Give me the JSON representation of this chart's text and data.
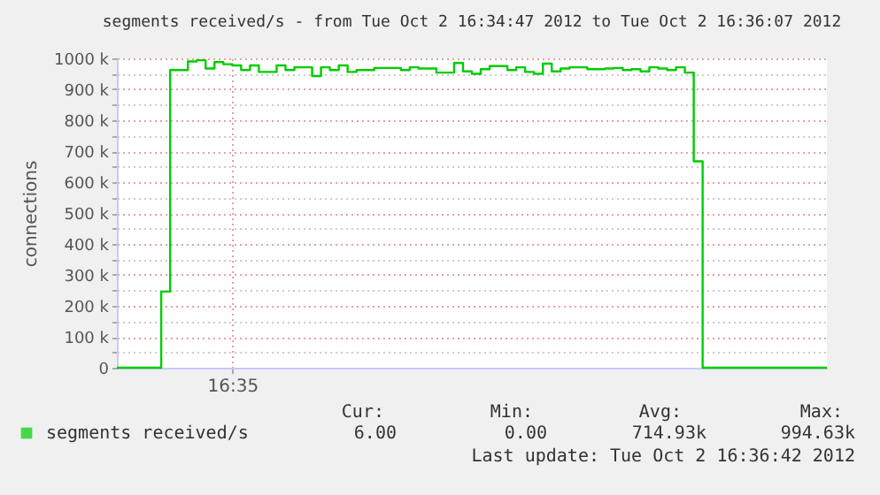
{
  "chart_data": {
    "type": "step",
    "title": "segments received/s - from Tue Oct  2 16:34:47 2012 to Tue Oct  2 16:36:07 2012",
    "ylabel": "connections",
    "categories": [
      null,
      null,
      null,
      null,
      null,
      null,
      null,
      null,
      null,
      null,
      null,
      null,
      null,
      "16:35",
      null,
      null,
      null,
      null,
      null,
      null,
      null,
      null,
      null,
      null,
      null,
      null,
      null,
      null,
      null,
      null,
      null,
      null,
      null,
      null,
      null,
      null,
      null,
      null,
      null,
      null,
      null,
      null,
      null,
      null,
      null,
      null,
      null,
      null,
      null,
      null,
      null,
      null,
      null,
      null,
      null,
      null,
      null,
      null,
      null,
      null,
      null,
      null,
      null,
      null,
      null,
      null,
      null,
      null,
      null,
      null,
      null,
      null,
      null,
      null,
      null,
      null,
      null,
      null,
      null,
      null,
      null
    ],
    "series": [
      {
        "name": "segments received/s",
        "color": "#00cc00",
        "values": [
          0,
          0,
          0,
          0,
          0,
          246000,
          962000,
          962000,
          990000,
          994000,
          967000,
          988000,
          981000,
          977000,
          962000,
          977000,
          956000,
          956000,
          977000,
          962000,
          971000,
          971000,
          943000,
          971000,
          962000,
          977000,
          956000,
          962000,
          962000,
          969000,
          969000,
          969000,
          962000,
          971000,
          967000,
          967000,
          954000,
          954000,
          985000,
          958000,
          950000,
          965000,
          975000,
          975000,
          962000,
          971000,
          956000,
          950000,
          983000,
          958000,
          967000,
          971000,
          971000,
          965000,
          965000,
          967000,
          969000,
          962000,
          965000,
          958000,
          971000,
          967000,
          962000,
          971000,
          954000,
          667000,
          0,
          0,
          0,
          0,
          0,
          0,
          0,
          0,
          0,
          0,
          0,
          0,
          0,
          0,
          0
        ]
      }
    ],
    "ylim": [
      0,
      1000000
    ],
    "yticks": [
      {
        "value": 0,
        "label": "0"
      },
      {
        "value": 50000,
        "label": null
      },
      {
        "value": 100000,
        "label": "100 k"
      },
      {
        "value": 150000,
        "label": null
      },
      {
        "value": 200000,
        "label": "200 k"
      },
      {
        "value": 250000,
        "label": null
      },
      {
        "value": 300000,
        "label": "300 k"
      },
      {
        "value": 350000,
        "label": null
      },
      {
        "value": 400000,
        "label": "400 k"
      },
      {
        "value": 450000,
        "label": null
      },
      {
        "value": 500000,
        "label": "500 k"
      },
      {
        "value": 550000,
        "label": null
      },
      {
        "value": 600000,
        "label": "600 k"
      },
      {
        "value": 650000,
        "label": null
      },
      {
        "value": 700000,
        "label": "700 k"
      },
      {
        "value": 750000,
        "label": null
      },
      {
        "value": 800000,
        "label": "800 k"
      },
      {
        "value": 850000,
        "label": null
      },
      {
        "value": 900000,
        "label": "900 k"
      },
      {
        "value": 950000,
        "label": null
      },
      {
        "value": 1000000,
        "label": "1000 k"
      }
    ],
    "grid": true,
    "legend": "bottom",
    "annotations": [
      "Cur:",
      "Min:",
      "Avg:",
      "Max:",
      "6.00",
      "0.00",
      "714.93k",
      "994.63k",
      "Last update:  Tue Oct  2 16:36:42 2012"
    ]
  }
}
